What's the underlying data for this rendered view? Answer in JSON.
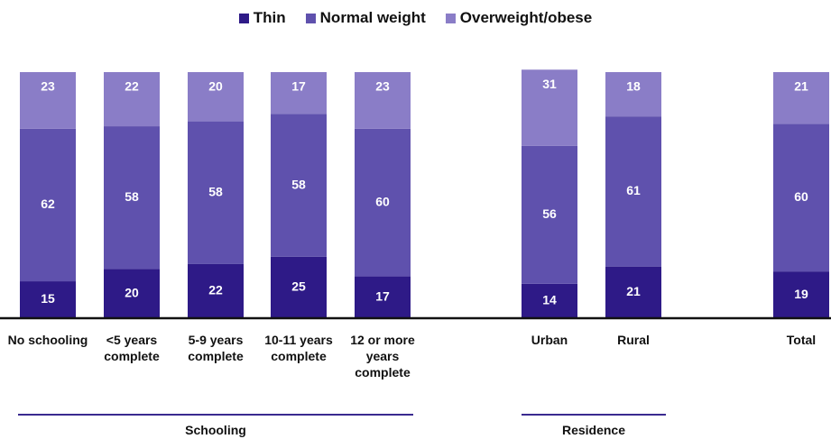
{
  "chart_data": {
    "type": "stacked_bar",
    "categories": [
      "No schooling",
      "<5 years complete",
      "5-9 years complete",
      "10-11 years complete",
      "12 or more years complete",
      "Urban",
      "Rural",
      "Total"
    ],
    "series": [
      {
        "name": "Thin",
        "color": "#2e1a87",
        "values": [
          15,
          20,
          22,
          25,
          17,
          14,
          21,
          19
        ]
      },
      {
        "name": "Normal weight",
        "color": "#5f51ad",
        "values": [
          62,
          58,
          58,
          58,
          60,
          56,
          61,
          60
        ]
      },
      {
        "name": "Overweight/obese",
        "color": "#8a7dc7",
        "values": [
          23,
          22,
          20,
          17,
          23,
          31,
          18,
          21
        ]
      }
    ],
    "groups": [
      "Schooling",
      "Residence"
    ],
    "ylim": [
      0,
      100
    ],
    "legend": "top"
  }
}
